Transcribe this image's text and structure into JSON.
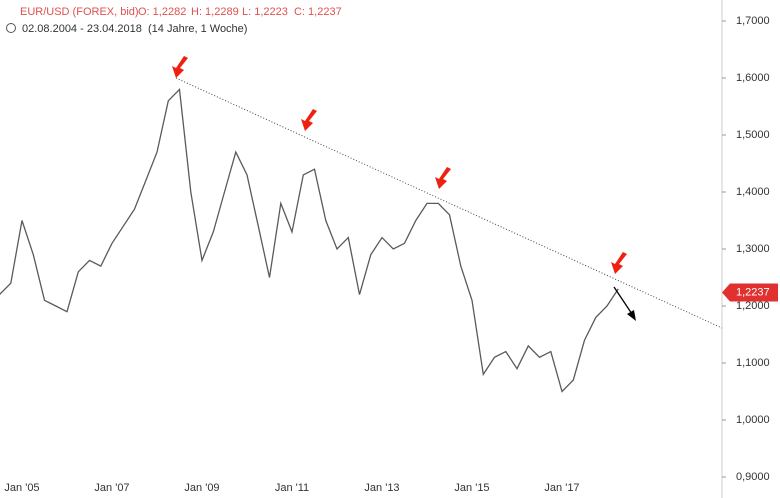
{
  "chart_data": {
    "type": "line",
    "header": {
      "symbol": "EUR/USD (FOREX, bid)",
      "open": "O: 1,2282",
      "high": "H: 1,2289",
      "low": "L: 1,2223",
      "close": "C: 1,2237",
      "range": "02.08.2004 - 23.04.2018",
      "duration": "(14 Jahre, 1 Woche)"
    },
    "categories": [
      null,
      null,
      "Jan '05",
      null,
      null,
      null,
      null,
      null,
      null,
      null,
      "Jan '07",
      null,
      null,
      null,
      null,
      null,
      null,
      null,
      "Jan '09",
      null,
      null,
      null,
      null,
      null,
      null,
      null,
      "Jan '11",
      null,
      null,
      null,
      null,
      null,
      null,
      null,
      "Jan '13",
      null,
      null,
      null,
      null,
      null,
      null,
      null,
      "Jan '15",
      null,
      null,
      null,
      null,
      null,
      null,
      null,
      "Jan '17",
      null,
      null,
      null,
      null,
      null
    ],
    "series": [
      {
        "name": "EUR/USD",
        "color": "#5a5a5a",
        "values": [
          1.22,
          1.24,
          1.35,
          1.29,
          1.21,
          1.2,
          1.19,
          1.26,
          1.28,
          1.27,
          1.31,
          1.34,
          1.37,
          1.42,
          1.47,
          1.56,
          1.58,
          1.4,
          1.28,
          1.33,
          1.4,
          1.47,
          1.43,
          1.34,
          1.25,
          1.38,
          1.33,
          1.43,
          1.44,
          1.35,
          1.3,
          1.32,
          1.22,
          1.29,
          1.32,
          1.3,
          1.31,
          1.35,
          1.38,
          1.38,
          1.36,
          1.27,
          1.21,
          1.08,
          1.11,
          1.12,
          1.09,
          1.13,
          1.11,
          1.12,
          1.05,
          1.07,
          1.14,
          1.18,
          1.2,
          1.23
        ]
      }
    ],
    "last_price": {
      "value": 1.2237,
      "label": "1,2237",
      "color": "#e03030"
    },
    "ylim": [
      0.9,
      1.7
    ],
    "yticks": [
      {
        "value": 0.9,
        "label": "0,9000"
      },
      {
        "value": 1.0,
        "label": "1,0000"
      },
      {
        "value": 1.1,
        "label": "1,1000"
      },
      {
        "value": 1.2,
        "label": "1,2000"
      },
      {
        "value": 1.3,
        "label": "1,3000"
      },
      {
        "value": 1.4,
        "label": "1,4000"
      },
      {
        "value": 1.5,
        "label": "1,5000"
      },
      {
        "value": 1.6,
        "label": "1,6000"
      },
      {
        "value": 1.7,
        "label": "1,7000"
      }
    ]
  }
}
